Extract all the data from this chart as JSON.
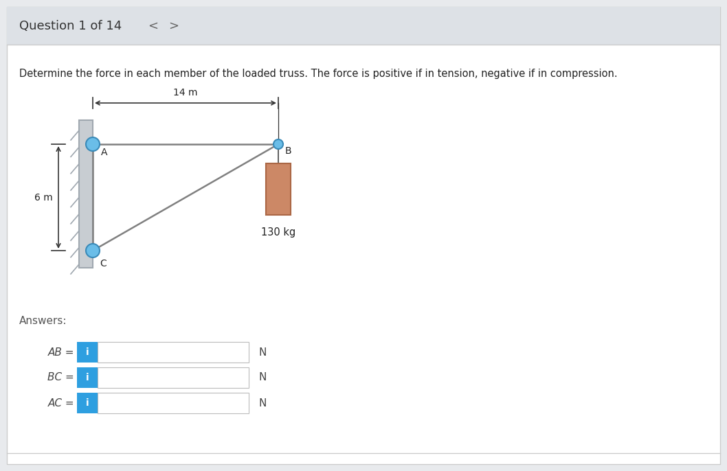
{
  "bg_color": "#e8eaed",
  "page_bg": "#ffffff",
  "title_text": "Question 1 of 14",
  "nav_less": "<",
  "nav_greater": ">",
  "problem_text": "Determine the force in each member of the loaded truss. The force is positive if in tension, negative if in compression.",
  "dim_14m": "14 m",
  "dim_6m": "6 m",
  "label_A": "A",
  "label_B": "B",
  "label_C": "C",
  "load_text": "130 kg",
  "answers_label": "Answers:",
  "answer_labels": [
    "AB =",
    "BC =",
    "AC ="
  ],
  "unit_label": "N",
  "wall_color": "#c8cdd2",
  "wall_stripe_color": "#a0a8b0",
  "truss_line_color": "#808080",
  "node_color_A": "#6abde8",
  "node_color_C": "#6abde8",
  "node_color_B": "#6abde8",
  "node_edge": "#3a8ab8",
  "load_box_fill": "#cc8866",
  "load_box_edge": "#aa6644",
  "load_string_color": "#444444",
  "arrow_color": "#333333",
  "dim_line_color": "#333333",
  "input_box_bg": "#ffffff",
  "input_box_border": "#bbbbbb",
  "info_btn_color": "#2e9fe0",
  "info_btn_text": "#ffffff",
  "info_char": "i",
  "header_bg": "#dde1e6",
  "separator_color": "#cccccc"
}
